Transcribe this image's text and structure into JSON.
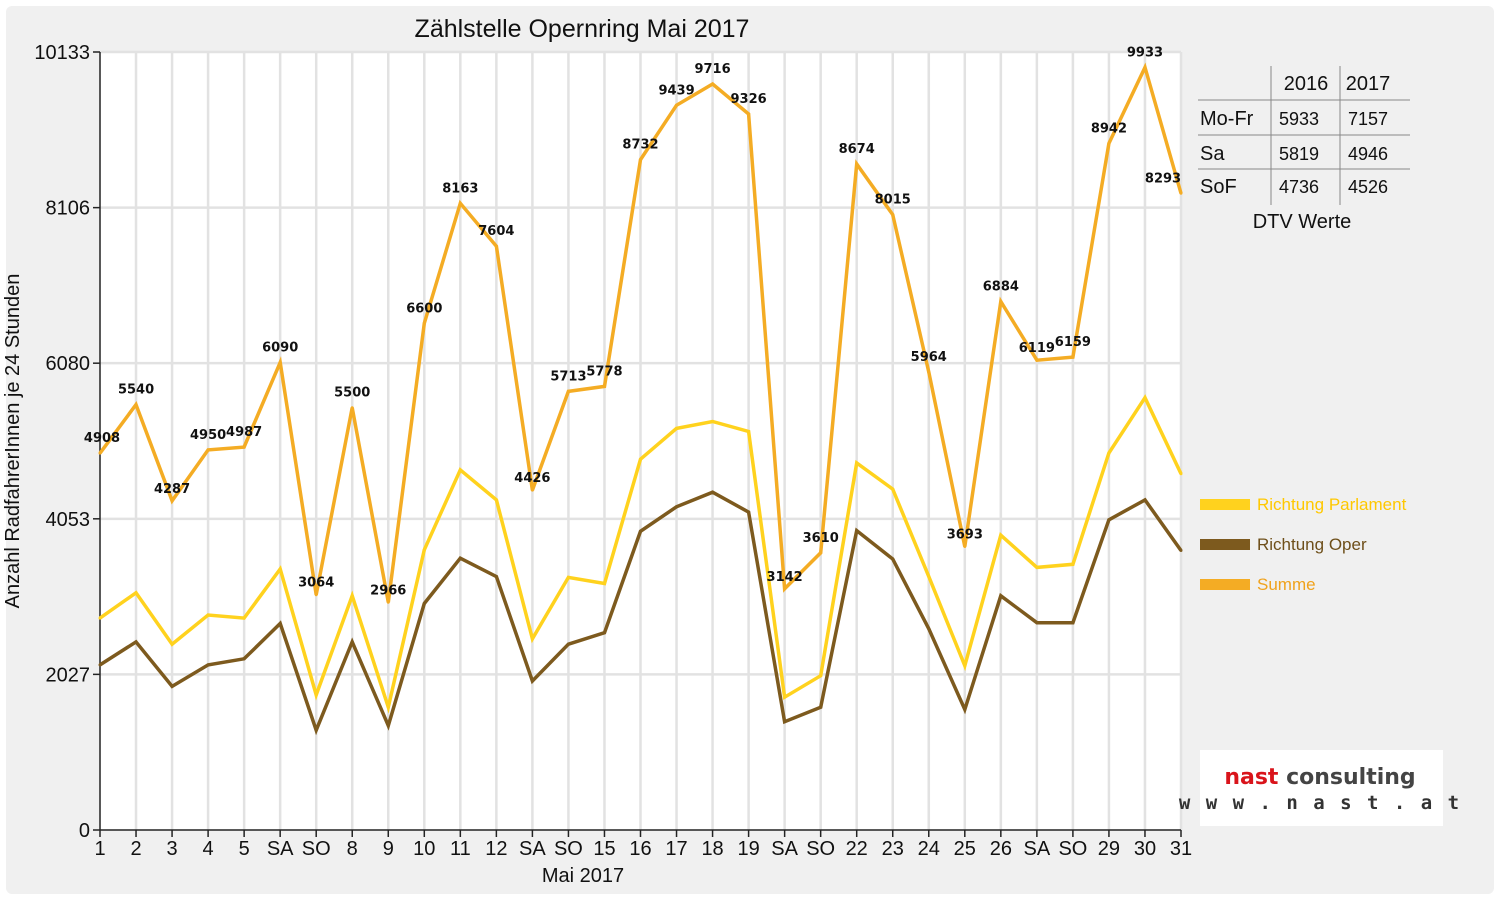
{
  "chart_data": {
    "type": "line",
    "title": "Zählstelle Opernring Mai 2017",
    "xlabel": "Mai 2017",
    "ylabel": "Anzahl RadfahrerInnen je 24 Stunden",
    "ylim": [
      0,
      10133
    ],
    "yticks": [
      0,
      2027,
      4053,
      6080,
      8106,
      10133
    ],
    "grid": true,
    "legend_position": "right",
    "categories": [
      "1",
      "2",
      "3",
      "4",
      "5",
      "SA",
      "SO",
      "8",
      "9",
      "10",
      "11",
      "12",
      "SA",
      "SO",
      "15",
      "16",
      "17",
      "18",
      "19",
      "SA",
      "SO",
      "22",
      "23",
      "24",
      "25",
      "26",
      "SA",
      "SO",
      "29",
      "30",
      "31"
    ],
    "red_categories": [
      0,
      6,
      13,
      20,
      24,
      27
    ],
    "series": [
      {
        "name": "Richtung Parlament",
        "color": "#ffd21e",
        "values": [
          2760,
          3090,
          2420,
          2800,
          2760,
          3400,
          1760,
          3050,
          1600,
          3650,
          4690,
          4300,
          2490,
          3290,
          3210,
          4830,
          5230,
          5320,
          5190,
          1730,
          2010,
          4780,
          4440,
          3300,
          2140,
          3840,
          3420,
          3460,
          4910,
          5630,
          4640
        ]
      },
      {
        "name": "Richtung Oper",
        "color": "#7d5a1e",
        "values": [
          2150,
          2450,
          1870,
          2150,
          2230,
          2690,
          1300,
          2450,
          1360,
          2950,
          3540,
          3300,
          1940,
          2420,
          2570,
          3890,
          4210,
          4400,
          4140,
          1410,
          1600,
          3900,
          3530,
          2620,
          1570,
          3050,
          2700,
          2700,
          4040,
          4300,
          3640
        ]
      },
      {
        "name": "Summe",
        "color": "#f4ac24",
        "values": [
          4908,
          5540,
          4287,
          4950,
          4987,
          6090,
          3064,
          5500,
          2966,
          6600,
          8163,
          7604,
          4426,
          5713,
          5778,
          8732,
          9439,
          9716,
          9326,
          3142,
          3610,
          8674,
          8015,
          5964,
          3693,
          6884,
          6119,
          6159,
          8942,
          9933,
          8293
        ]
      }
    ]
  },
  "dtv_table": {
    "caption": "DTV Werte",
    "headers": [
      "",
      "2016",
      "2017"
    ],
    "rows": [
      {
        "label": "Mo-Fr",
        "v2016": "5933",
        "v2017": "7157"
      },
      {
        "label": "Sa",
        "v2016": "5819",
        "v2017": "4946"
      },
      {
        "label": "SoF",
        "v2016": "4736",
        "v2017": "4526"
      }
    ]
  },
  "logo": {
    "name": "nast consulting",
    "url_text": "w w w . n a s t . a t"
  },
  "colors": {
    "background_frame": "#f0f0f0",
    "grid": "#e2e2e2",
    "red": "#dd0000"
  }
}
